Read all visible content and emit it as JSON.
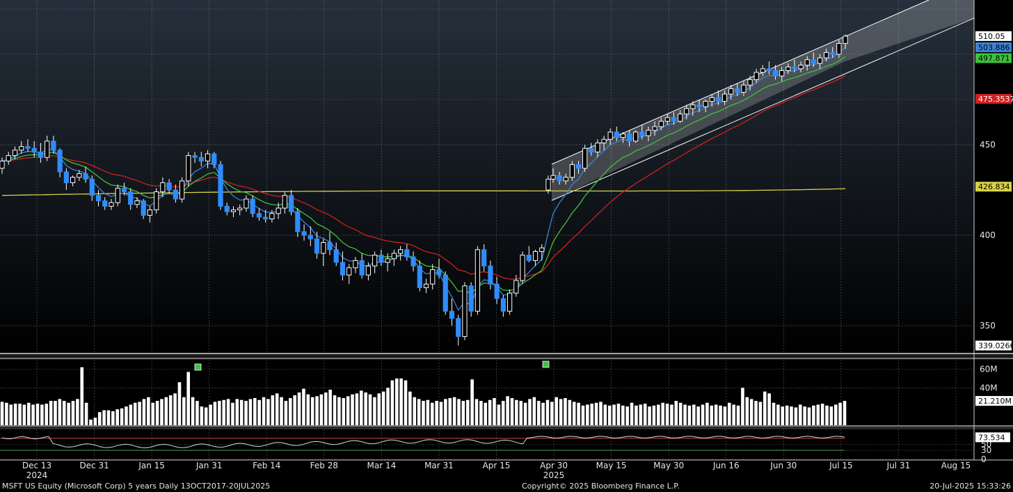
{
  "footer": {
    "left": "MSFT US Equity (Microsoft Corp) 5 years  Daily 13OCT2017-20JUL2025",
    "center": "Copyright© 2025 Bloomberg Finance L.P.",
    "right": "20-Jul-2025 15:33:26"
  },
  "colors": {
    "up": "#ffffff",
    "down": "#2f8cff",
    "ma_blue": "#3d84d6",
    "ma_green": "#3fc23f",
    "ma_red": "#d02020",
    "ma_yellow": "#d8d24a",
    "rsi": "#d9d9d9",
    "rsi_ref": "#c84848"
  },
  "chart_data": [
    {
      "type": "candlestick",
      "x_ticks": [
        "Dec 13",
        "Dec 31",
        "Jan 15",
        "Jan 31",
        "Feb 14",
        "Feb 28",
        "Mar 14",
        "Mar 31",
        "Apr 15",
        "Apr 30",
        "May 15",
        "May 30",
        "Jun 16",
        "Jun 30",
        "Jul 15",
        "Jul 31",
        "Aug 15"
      ],
      "year_labels": [
        {
          "label": "2024",
          "at": "Dec 13"
        },
        {
          "label": "2025",
          "at": "Apr 30"
        }
      ],
      "y_ticks": [
        350,
        400,
        450
      ],
      "ylim": [
        335,
        530
      ],
      "grid": true,
      "price_labels": [
        {
          "value": 510.05,
          "text": "510.05",
          "bg": "#ffffff",
          "fg": "#000000"
        },
        {
          "value": 503.886,
          "text": "503.886",
          "bg": "#3d84d6",
          "fg": "#000000"
        },
        {
          "value": 497.871,
          "text": "497.871",
          "bg": "#3fc23f",
          "fg": "#000000"
        },
        {
          "value": 475.3537,
          "text": "475.3537",
          "bg": "#d02020",
          "fg": "#ffffff"
        },
        {
          "value": 426.834,
          "text": "426.834",
          "bg": "#d8d24a",
          "fg": "#000000"
        },
        {
          "value": 339.0266,
          "text": "339.0266",
          "bg": "#ffffff",
          "fg": "#000000"
        }
      ],
      "candles": [
        [
          437,
          443,
          434,
          441
        ],
        [
          441,
          446,
          439,
          444
        ],
        [
          444,
          449,
          442,
          447
        ],
        [
          447,
          452,
          445,
          449
        ],
        [
          449,
          453,
          446,
          448
        ],
        [
          448,
          452,
          443,
          446
        ],
        [
          446,
          451,
          440,
          443
        ],
        [
          443,
          455,
          441,
          452
        ],
        [
          452,
          455,
          445,
          447
        ],
        [
          447,
          448,
          432,
          435
        ],
        [
          435,
          437,
          425,
          429
        ],
        [
          429,
          433,
          427,
          432
        ],
        [
          432,
          436,
          430,
          434
        ],
        [
          434,
          438,
          429,
          431
        ],
        [
          431,
          433,
          419,
          422
        ],
        [
          422,
          425,
          416,
          419
        ],
        [
          419,
          421,
          414,
          416
        ],
        [
          416,
          420,
          414,
          418
        ],
        [
          418,
          428,
          416,
          426
        ],
        [
          426,
          429,
          422,
          424
        ],
        [
          424,
          426,
          414,
          417
        ],
        [
          417,
          421,
          415,
          419
        ],
        [
          419,
          420,
          409,
          411
        ],
        [
          411,
          416,
          407,
          414
        ],
        [
          414,
          426,
          412,
          424
        ],
        [
          424,
          432,
          421,
          429
        ],
        [
          429,
          431,
          423,
          425
        ],
        [
          425,
          428,
          418,
          420
        ],
        [
          420,
          432,
          418,
          430
        ],
        [
          430,
          446,
          427,
          444
        ],
        [
          444,
          446,
          440,
          443
        ],
        [
          443,
          446,
          438,
          441
        ],
        [
          441,
          447,
          437,
          445
        ],
        [
          445,
          446,
          437,
          439
        ],
        [
          439,
          441,
          414,
          416
        ],
        [
          416,
          418,
          411,
          413
        ],
        [
          413,
          416,
          410,
          414
        ],
        [
          414,
          417,
          411,
          415
        ],
        [
          415,
          422,
          413,
          420
        ],
        [
          420,
          422,
          410,
          412
        ],
        [
          412,
          415,
          408,
          410
        ],
        [
          410,
          414,
          407,
          409
        ],
        [
          409,
          414,
          407,
          412
        ],
        [
          412,
          418,
          409,
          415
        ],
        [
          415,
          424,
          412,
          422
        ],
        [
          422,
          425,
          411,
          413
        ],
        [
          413,
          415,
          399,
          402
        ],
        [
          402,
          406,
          397,
          400
        ],
        [
          400,
          405,
          394,
          398
        ],
        [
          398,
          402,
          387,
          390
        ],
        [
          390,
          398,
          383,
          396
        ],
        [
          396,
          402,
          389,
          392
        ],
        [
          392,
          396,
          383,
          385
        ],
        [
          385,
          391,
          375,
          378
        ],
        [
          378,
          384,
          373,
          382
        ],
        [
          382,
          388,
          379,
          386
        ],
        [
          386,
          390,
          376,
          378
        ],
        [
          378,
          385,
          375,
          383
        ],
        [
          383,
          391,
          379,
          389
        ],
        [
          389,
          392,
          383,
          385
        ],
        [
          385,
          390,
          380,
          387
        ],
        [
          387,
          392,
          383,
          390
        ],
        [
          390,
          394,
          386,
          392
        ],
        [
          392,
          395,
          386,
          388
        ],
        [
          388,
          391,
          380,
          383
        ],
        [
          383,
          386,
          369,
          371
        ],
        [
          371,
          376,
          368,
          373
        ],
        [
          373,
          384,
          370,
          381
        ],
        [
          381,
          387,
          376,
          378
        ],
        [
          378,
          380,
          356,
          358
        ],
        [
          358,
          365,
          350,
          354
        ],
        [
          354,
          356,
          339,
          344
        ],
        [
          344,
          374,
          342,
          372
        ],
        [
          372,
          374,
          355,
          358
        ],
        [
          358,
          394,
          356,
          392
        ],
        [
          392,
          395,
          380,
          383
        ],
        [
          383,
          386,
          370,
          373
        ],
        [
          373,
          377,
          362,
          365
        ],
        [
          365,
          367,
          355,
          358
        ],
        [
          358,
          370,
          356,
          368
        ],
        [
          368,
          378,
          366,
          375
        ],
        [
          375,
          391,
          373,
          389
        ],
        [
          389,
          394,
          385,
          386
        ],
        [
          386,
          392,
          383,
          391
        ],
        [
          391,
          395,
          386,
          393
        ],
        [
          425,
          433,
          423,
          431
        ],
        [
          431,
          437,
          429,
          433
        ],
        [
          433,
          435,
          428,
          430
        ],
        [
          430,
          434,
          428,
          432
        ],
        [
          432,
          441,
          430,
          439
        ],
        [
          439,
          441,
          434,
          437
        ],
        [
          437,
          450,
          435,
          448
        ],
        [
          448,
          451,
          444,
          446
        ],
        [
          446,
          453,
          443,
          451
        ],
        [
          451,
          455,
          447,
          453
        ],
        [
          453,
          459,
          450,
          457
        ],
        [
          457,
          460,
          452,
          454
        ],
        [
          454,
          457,
          451,
          456
        ],
        [
          456,
          458,
          449,
          452
        ],
        [
          452,
          458,
          451,
          457
        ],
        [
          457,
          461,
          453,
          455
        ],
        [
          455,
          460,
          452,
          458
        ],
        [
          458,
          463,
          455,
          460
        ],
        [
          460,
          465,
          458,
          463
        ],
        [
          463,
          467,
          461,
          465
        ],
        [
          465,
          468,
          461,
          463
        ],
        [
          463,
          469,
          462,
          467
        ],
        [
          467,
          472,
          464,
          470
        ],
        [
          470,
          474,
          466,
          472
        ],
        [
          472,
          475,
          468,
          471
        ],
        [
          471,
          475,
          468,
          474
        ],
        [
          474,
          478,
          471,
          476
        ],
        [
          476,
          480,
          472,
          474
        ],
        [
          474,
          480,
          472,
          478
        ],
        [
          478,
          483,
          475,
          481
        ],
        [
          481,
          484,
          477,
          479
        ],
        [
          479,
          485,
          477,
          483
        ],
        [
          483,
          488,
          480,
          486
        ],
        [
          486,
          492,
          484,
          490
        ],
        [
          490,
          494,
          488,
          492
        ],
        [
          492,
          496,
          489,
          491
        ],
        [
          491,
          494,
          486,
          488
        ],
        [
          488,
          493,
          485,
          491
        ],
        [
          491,
          495,
          489,
          493
        ],
        [
          493,
          497,
          490,
          492
        ],
        [
          492,
          496,
          490,
          494
        ],
        [
          494,
          499,
          491,
          497
        ],
        [
          497,
          501,
          493,
          495
        ],
        [
          495,
          500,
          492,
          498
        ],
        [
          498,
          503,
          496,
          501
        ],
        [
          501,
          504,
          498,
          500
        ],
        [
          500,
          508,
          498,
          506
        ],
        [
          506,
          511,
          503,
          510
        ]
      ]
    },
    {
      "type": "bar",
      "y_ticks": [
        {
          "value": 40,
          "text": "40M"
        },
        {
          "value": 60,
          "text": "60M"
        }
      ],
      "ylim": [
        0,
        70
      ],
      "current_label": "21.210M",
      "values": [
        25,
        24,
        22,
        23,
        23,
        22,
        24,
        22,
        23,
        22,
        23,
        26,
        26,
        28,
        26,
        24,
        26,
        28,
        62,
        24,
        6,
        8,
        14,
        16,
        16,
        15,
        17,
        18,
        20,
        22,
        24,
        25,
        28,
        30,
        24,
        26,
        28,
        30,
        32,
        34,
        46,
        30,
        57,
        30,
        26,
        20,
        19,
        22,
        25,
        26,
        27,
        28,
        24,
        28,
        27,
        26,
        28,
        29,
        27,
        30,
        28,
        32,
        34,
        30,
        26,
        29,
        32,
        35,
        39,
        33,
        30,
        31,
        33,
        35,
        38,
        32,
        30,
        29,
        31,
        33,
        34,
        37,
        35,
        33,
        30,
        34,
        36,
        40,
        48,
        50,
        50,
        48,
        36,
        30,
        28,
        26,
        27,
        24,
        26,
        25,
        28,
        29,
        30,
        28,
        26,
        27,
        49,
        28,
        26,
        24,
        27,
        29,
        22,
        26,
        31,
        29,
        27,
        26,
        24,
        28,
        30,
        26,
        24,
        27,
        25,
        30,
        28,
        29,
        27,
        25,
        24,
        21,
        22,
        23,
        24,
        25,
        22,
        21,
        22,
        23,
        21,
        20,
        24,
        21,
        22,
        23,
        20,
        21,
        22,
        24,
        23,
        22,
        26,
        24,
        22,
        21,
        22,
        20,
        22,
        24,
        21,
        22,
        21,
        20,
        24,
        22,
        21,
        40,
        30,
        28,
        26,
        25,
        36,
        34,
        24,
        22,
        20,
        21,
        20,
        19,
        22,
        20,
        19,
        21,
        22,
        23,
        21,
        20,
        22,
        24,
        26
      ]
    },
    {
      "type": "line",
      "y_ticks": [
        {
          "value": 0,
          "text": "0"
        },
        {
          "value": 30,
          "text": "30"
        },
        {
          "value": 50,
          "text": "50"
        }
      ],
      "ylim": [
        0,
        100
      ],
      "current_label": "73.534"
    }
  ]
}
